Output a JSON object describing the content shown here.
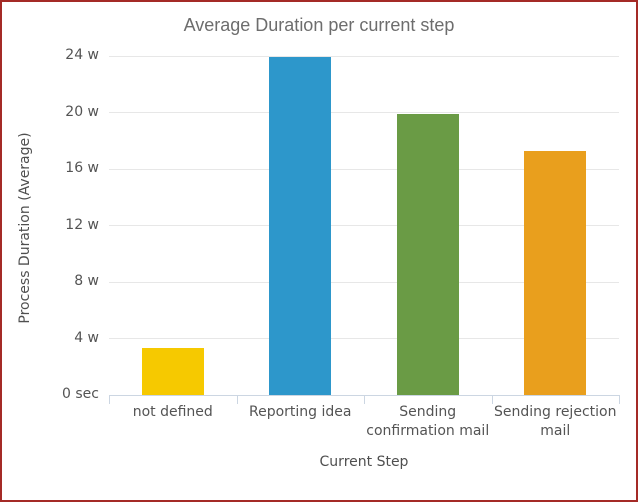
{
  "frame": {
    "border_color": "#a42a26",
    "background_color": "#ffffff"
  },
  "chart_data": {
    "type": "bar",
    "title": "Average Duration per current step",
    "xlabel": "Current Step",
    "ylabel": "Process Duration (Average)",
    "categories": [
      "not defined",
      "Reporting idea",
      "Sending confirmation mail",
      "Sending rejection mail"
    ],
    "values": [
      3.3,
      23.9,
      19.9,
      17.3
    ],
    "value_unit": "weeks",
    "bar_colors": [
      "#f6c900",
      "#2d97cb",
      "#6a9b45",
      "#e99f1d"
    ],
    "ylim": [
      0,
      24
    ],
    "yticks": [
      {
        "value": 0,
        "label": "0 sec"
      },
      {
        "value": 4,
        "label": "4 w"
      },
      {
        "value": 8,
        "label": "8 w"
      },
      {
        "value": 12,
        "label": "12 w"
      },
      {
        "value": 16,
        "label": "16 w"
      },
      {
        "value": 20,
        "label": "20 w"
      },
      {
        "value": 24,
        "label": "24 w"
      }
    ],
    "grid": "horizontal",
    "legend_position": "none",
    "colors": {
      "title": "#6d6d6d",
      "tick_labels": "#545454",
      "axis_titles": "#4f4f4f",
      "gridlines": "#e7e7e7",
      "axis_line": "#ccd6e2"
    }
  }
}
